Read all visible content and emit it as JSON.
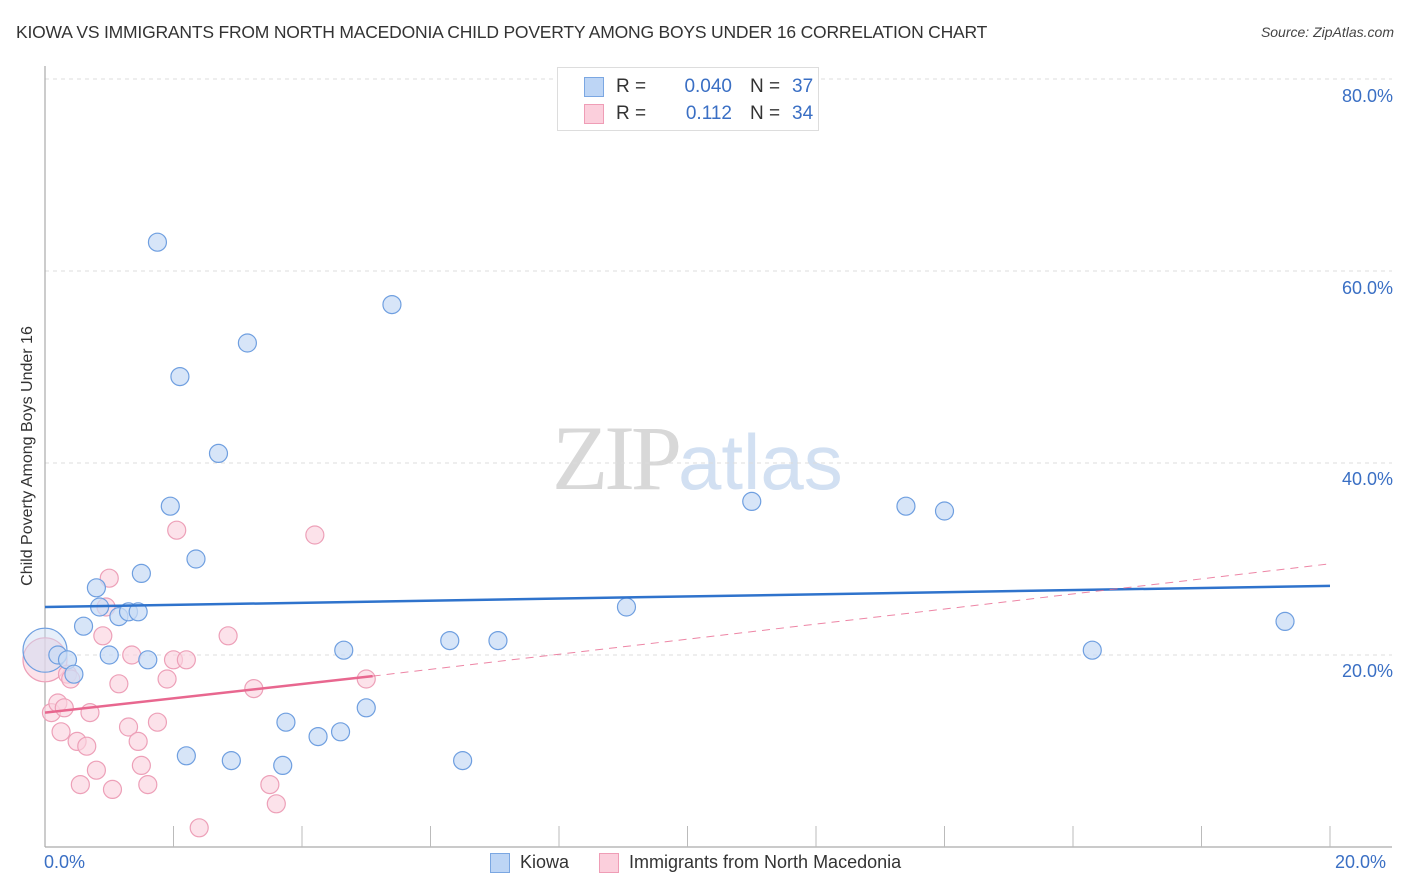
{
  "header": {
    "title": "KIOWA VS IMMIGRANTS FROM NORTH MACEDONIA CHILD POVERTY AMONG BOYS UNDER 16 CORRELATION CHART",
    "source": "Source: ZipAtlas.com"
  },
  "watermark": {
    "zip": "ZIP",
    "atlas": "atlas"
  },
  "legend": {
    "series": [
      {
        "name": "Kiowa",
        "r_label": "R =",
        "r_value": "0.040",
        "n_label": "N =",
        "n_value": "37",
        "color": "#a9c8f0"
      },
      {
        "name": "Immigrants from North Macedonia",
        "r_label": "R =",
        "r_value": "0.112",
        "n_label": "N =",
        "n_value": "34",
        "color": "#f7b8cb"
      }
    ]
  },
  "axes": {
    "ylabel": "Child Poverty Among Boys Under 16",
    "y_ticks": [
      "80.0%",
      "60.0%",
      "40.0%",
      "20.0%"
    ],
    "x_ticks": [
      "0.0%",
      "20.0%"
    ]
  },
  "colors": {
    "kiowa_fill": "#c9dcf5",
    "kiowa_stroke": "#6f9fe0",
    "kiowa_line": "#2f73cc",
    "macedonia_fill": "#fbd3df",
    "macedonia_stroke": "#eda0b8",
    "macedonia_line": "#e8678f",
    "tick_text": "#3a6fc4"
  },
  "chart_data": {
    "type": "scatter",
    "title": "KIOWA VS IMMIGRANTS FROM NORTH MACEDONIA CHILD POVERTY AMONG BOYS UNDER 16 CORRELATION CHART",
    "xlabel": "",
    "ylabel": "Child Poverty Among Boys Under 16",
    "xlim": [
      0,
      20
    ],
    "ylim": [
      0,
      80
    ],
    "x_unit": "%",
    "y_unit": "%",
    "grid": true,
    "legend_position": "top-center",
    "series": [
      {
        "name": "Kiowa",
        "R": 0.04,
        "N": 37,
        "points": [
          [
            0.0,
            20.5
          ],
          [
            0.2,
            20.0
          ],
          [
            0.35,
            19.5
          ],
          [
            0.45,
            18.0
          ],
          [
            0.6,
            23.0
          ],
          [
            0.8,
            27.0
          ],
          [
            0.85,
            25.0
          ],
          [
            1.0,
            20.0
          ],
          [
            1.15,
            24.0
          ],
          [
            1.3,
            24.5
          ],
          [
            1.45,
            24.5
          ],
          [
            1.5,
            28.5
          ],
          [
            1.6,
            19.5
          ],
          [
            1.75,
            63.0
          ],
          [
            1.95,
            35.5
          ],
          [
            2.1,
            49.0
          ],
          [
            2.2,
            9.5
          ],
          [
            2.35,
            30.0
          ],
          [
            2.7,
            41.0
          ],
          [
            2.9,
            9.0
          ],
          [
            3.15,
            52.5
          ],
          [
            3.7,
            8.5
          ],
          [
            3.75,
            13.0
          ],
          [
            4.25,
            11.5
          ],
          [
            4.6,
            12.0
          ],
          [
            4.65,
            20.5
          ],
          [
            5.0,
            14.5
          ],
          [
            5.4,
            56.5
          ],
          [
            6.3,
            21.5
          ],
          [
            6.5,
            9.0
          ],
          [
            7.05,
            21.5
          ],
          [
            9.05,
            25.0
          ],
          [
            11.0,
            36.0
          ],
          [
            13.4,
            35.5
          ],
          [
            14.0,
            35.0
          ],
          [
            16.3,
            20.5
          ],
          [
            19.3,
            23.5
          ]
        ],
        "trendline": {
          "x": [
            0,
            20
          ],
          "y": [
            25.0,
            27.2
          ]
        }
      },
      {
        "name": "Immigrants from North Macedonia",
        "R": 0.112,
        "N": 34,
        "points": [
          [
            0.0,
            19.5
          ],
          [
            0.1,
            14.0
          ],
          [
            0.2,
            15.0
          ],
          [
            0.25,
            12.0
          ],
          [
            0.3,
            14.5
          ],
          [
            0.35,
            18.0
          ],
          [
            0.4,
            17.5
          ],
          [
            0.5,
            11.0
          ],
          [
            0.55,
            6.5
          ],
          [
            0.65,
            10.5
          ],
          [
            0.7,
            14.0
          ],
          [
            0.8,
            8.0
          ],
          [
            0.9,
            22.0
          ],
          [
            0.95,
            25.0
          ],
          [
            1.0,
            28.0
          ],
          [
            1.05,
            6.0
          ],
          [
            1.15,
            17.0
          ],
          [
            1.3,
            12.5
          ],
          [
            1.35,
            20.0
          ],
          [
            1.45,
            11.0
          ],
          [
            1.5,
            8.5
          ],
          [
            1.6,
            6.5
          ],
          [
            1.75,
            13.0
          ],
          [
            1.9,
            17.5
          ],
          [
            2.0,
            19.5
          ],
          [
            2.05,
            33.0
          ],
          [
            2.2,
            19.5
          ],
          [
            2.4,
            2.0
          ],
          [
            2.85,
            22.0
          ],
          [
            3.25,
            16.5
          ],
          [
            3.5,
            6.5
          ],
          [
            3.6,
            4.5
          ],
          [
            4.2,
            32.5
          ],
          [
            5.0,
            17.5
          ]
        ],
        "trendline": {
          "x": [
            0,
            5.1
          ],
          "y": [
            14.0,
            17.8
          ],
          "dashed_extension": {
            "x": [
              5.1,
              20
            ],
            "y": [
              17.8,
              29.5
            ]
          }
        }
      }
    ]
  }
}
